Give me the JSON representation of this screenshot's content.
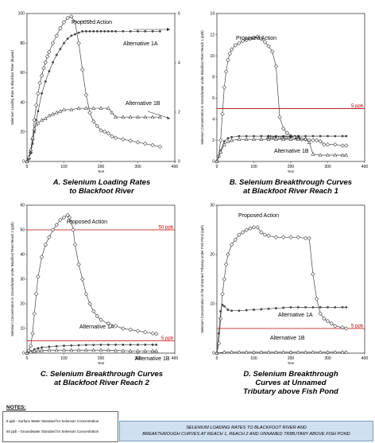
{
  "chart_data": [
    {
      "type": "line",
      "panel": "A",
      "caption_lines": [
        "A. Selenium Loading Rates",
        "to Blackfoot River"
      ],
      "xlabel": "Year",
      "ylabel": "Selenium Loading Rate to Blackfoot River (lb/year)",
      "xlim": [
        0,
        400
      ],
      "ylim": [
        0,
        100
      ],
      "y2lim": [
        0,
        6
      ],
      "xticks": [
        0,
        100,
        200,
        300,
        400
      ],
      "yticks": [
        0,
        20,
        40,
        60,
        80,
        100
      ],
      "y2ticks": [
        0,
        2,
        4,
        6
      ],
      "series": [
        {
          "name": "Proposed Action",
          "marker": "diamond",
          "axis": "left",
          "x": [
            0,
            5,
            10,
            15,
            20,
            25,
            30,
            35,
            40,
            45,
            50,
            55,
            60,
            70,
            80,
            90,
            100,
            110,
            120,
            130,
            140,
            150,
            160,
            170,
            180,
            190,
            200,
            210,
            220,
            230,
            240,
            260,
            280,
            300,
            320,
            340,
            360
          ],
          "y": [
            0,
            2,
            6,
            15,
            28,
            38,
            46,
            53,
            58,
            63,
            67,
            71,
            74,
            80,
            85,
            90,
            94,
            97,
            98,
            94,
            80,
            62,
            45,
            33,
            27,
            24,
            21,
            20,
            19,
            17,
            16,
            15,
            14,
            13,
            12,
            11,
            10
          ]
        },
        {
          "name": "Alternative 1A",
          "marker": "circle",
          "axis": "left",
          "x": [
            0,
            5,
            10,
            15,
            20,
            25,
            30,
            40,
            50,
            60,
            70,
            80,
            90,
            100,
            110,
            120,
            130,
            140,
            150,
            160,
            170,
            180,
            190,
            200,
            210,
            220,
            230,
            240,
            260,
            280,
            300,
            320,
            340,
            360
          ],
          "y": [
            0,
            2,
            6,
            12,
            20,
            28,
            34,
            46,
            54,
            61,
            67,
            72,
            76,
            80,
            83,
            85,
            86,
            87,
            88,
            88,
            88,
            88,
            88,
            88,
            88,
            88,
            88,
            88,
            88,
            88,
            88,
            88,
            88,
            88
          ]
        },
        {
          "name": "Alternative 1B",
          "marker": "triangle",
          "axis": "left",
          "x": [
            0,
            5,
            10,
            15,
            20,
            25,
            30,
            40,
            50,
            60,
            70,
            80,
            90,
            100,
            120,
            140,
            160,
            180,
            200,
            220,
            230,
            240,
            260,
            280,
            300,
            320,
            340,
            360
          ],
          "y": [
            0,
            3,
            8,
            16,
            22,
            25,
            26,
            28,
            29,
            31,
            32,
            33,
            34,
            35,
            35,
            36,
            36,
            36,
            36,
            36,
            33,
            30,
            30,
            30,
            30,
            30,
            30,
            30
          ]
        }
      ]
    },
    {
      "type": "line",
      "panel": "B",
      "caption_lines": [
        "B. Selenium Breakthrough Curves",
        "at Blackfoot River Reach 1"
      ],
      "xlabel": "Year",
      "ylabel": "Selenium Concentration in Groundwater under Blackfoot River Reach 1 (ppb)",
      "xlim": [
        0,
        400
      ],
      "ylim": [
        0,
        14
      ],
      "xticks": [
        0,
        100,
        200,
        300,
        400
      ],
      "yticks": [
        0,
        2,
        4,
        6,
        8,
        10,
        12,
        14
      ],
      "standard_line": {
        "value": 5,
        "label": "5 ppb"
      },
      "series": [
        {
          "name": "Proposed Action",
          "marker": "diamond",
          "x": [
            0,
            5,
            10,
            15,
            20,
            25,
            30,
            35,
            40,
            50,
            60,
            70,
            80,
            90,
            100,
            110,
            120,
            130,
            140,
            150,
            160,
            170,
            180,
            190,
            200,
            210,
            220,
            230,
            240,
            250,
            260,
            270,
            280,
            290,
            300,
            320,
            340,
            350
          ],
          "y": [
            0,
            0.5,
            2,
            4.5,
            7,
            8.5,
            9.6,
            10.2,
            10.6,
            11.0,
            11.2,
            11.4,
            11.5,
            11.6,
            11.7,
            11.8,
            11.6,
            11.3,
            10.9,
            10.4,
            9.0,
            4.2,
            3.1,
            2.7,
            2.4,
            2.3,
            2.2,
            2.1,
            2.1,
            2.0,
            2.0,
            2.0,
            1.9,
            1.6,
            1.6,
            1.6,
            1.5,
            1.5
          ]
        },
        {
          "name": "Alternative 1A",
          "marker": "circle",
          "x": [
            0,
            10,
            20,
            30,
            40,
            60,
            80,
            100,
            120,
            140,
            160,
            180,
            200,
            220,
            240,
            260,
            280,
            300,
            320,
            340,
            350
          ],
          "y": [
            0,
            1.0,
            1.9,
            2.2,
            2.3,
            2.4,
            2.4,
            2.4,
            2.4,
            2.4,
            2.4,
            2.4,
            2.4,
            2.4,
            2.4,
            2.4,
            2.4,
            2.4,
            2.4,
            2.4,
            2.4
          ]
        },
        {
          "name": "Alternative 1B",
          "marker": "triangle",
          "x": [
            0,
            10,
            20,
            30,
            40,
            60,
            80,
            100,
            120,
            140,
            160,
            180,
            200,
            220,
            240,
            250,
            260,
            280,
            300,
            320,
            340,
            350
          ],
          "y": [
            0,
            0.9,
            1.6,
            1.9,
            2.0,
            2.1,
            2.1,
            2.1,
            2.1,
            2.1,
            2.1,
            2.1,
            2.1,
            2.1,
            2.1,
            1.8,
            0.7,
            0.6,
            0.6,
            0.6,
            0.6,
            0.6
          ]
        }
      ]
    },
    {
      "type": "line",
      "panel": "C",
      "caption_lines": [
        "C. Selenium Breakthrough Curves",
        "at Blackfoot River Reach 2"
      ],
      "xlabel": "Year",
      "ylabel": "Selenium Concentration in Groundwater under Blackfoot River Reach 2 (ppb)",
      "xlim": [
        0,
        400
      ],
      "ylim": [
        0,
        60
      ],
      "xticks": [
        0,
        100,
        200,
        300,
        400
      ],
      "yticks": [
        0,
        10,
        20,
        30,
        40,
        50,
        60
      ],
      "standard_lines": [
        {
          "value": 50,
          "label": "50 ppb"
        },
        {
          "value": 5,
          "label": "5 ppb"
        }
      ],
      "series": [
        {
          "name": "Proposed Action",
          "marker": "diamond",
          "x": [
            0,
            5,
            10,
            15,
            20,
            25,
            30,
            40,
            50,
            60,
            70,
            80,
            90,
            100,
            110,
            115,
            120,
            125,
            130,
            140,
            150,
            160,
            170,
            180,
            190,
            200,
            220,
            240,
            260,
            280,
            300,
            320,
            340,
            350
          ],
          "y": [
            0,
            1,
            3,
            8,
            16,
            24,
            31,
            39,
            44,
            47,
            50,
            52,
            54,
            55,
            56,
            55,
            53,
            50,
            44,
            36,
            30,
            24,
            20,
            17,
            15,
            13.5,
            12,
            11,
            10,
            9.5,
            9,
            8.5,
            8,
            7.8
          ]
        },
        {
          "name": "Alternative 1A",
          "marker": "circle",
          "x": [
            0,
            10,
            20,
            30,
            40,
            60,
            80,
            100,
            120,
            140,
            160,
            180,
            200,
            220,
            240,
            260,
            280,
            300,
            320,
            340,
            350
          ],
          "y": [
            0,
            0.8,
            1.5,
            2.0,
            2.3,
            2.6,
            2.8,
            3.0,
            3.1,
            3.2,
            3.3,
            3.3,
            3.4,
            3.4,
            3.4,
            3.4,
            3.4,
            3.4,
            3.4,
            3.4,
            3.4
          ]
        },
        {
          "name": "Alternative 1B",
          "marker": "triangle",
          "x": [
            0,
            10,
            20,
            30,
            40,
            60,
            80,
            100,
            120,
            140,
            160,
            180,
            200,
            220,
            240,
            260,
            280,
            300,
            320,
            340,
            350
          ],
          "y": [
            0,
            0.5,
            0.8,
            1.0,
            1.1,
            1.2,
            1.2,
            1.2,
            1.2,
            1.2,
            1.2,
            1.2,
            1.2,
            1.2,
            1.1,
            1.0,
            0.9,
            0.9,
            0.9,
            0.9,
            0.9
          ]
        }
      ]
    },
    {
      "type": "line",
      "panel": "D",
      "caption_lines": [
        "D. Selenium Breakthrough",
        "Curves at Unnamed",
        "Tributary above Fish Pond"
      ],
      "xlabel": "Year",
      "ylabel": "Selenium Concentration in the Unnamed Tributary under Fish Pond (ppb)",
      "xlim": [
        0,
        400
      ],
      "ylim": [
        0,
        30
      ],
      "xticks": [
        0,
        100,
        200,
        300,
        400
      ],
      "yticks": [
        0,
        10,
        20,
        30
      ],
      "standard_line": {
        "value": 5,
        "label": "5 ppb"
      },
      "series": [
        {
          "name": "Proposed Action",
          "marker": "diamond",
          "x": [
            0,
            5,
            10,
            15,
            20,
            25,
            30,
            40,
            50,
            60,
            70,
            80,
            90,
            100,
            110,
            120,
            130,
            140,
            160,
            180,
            200,
            220,
            240,
            250,
            260,
            270,
            280,
            290,
            300,
            310,
            320,
            340,
            350
          ],
          "y": [
            0,
            2,
            7,
            12,
            15,
            18,
            20,
            22,
            23,
            24,
            24.5,
            25,
            25.3,
            25.5,
            25.5,
            24.5,
            24,
            23.8,
            23.5,
            23.5,
            23.5,
            23.5,
            23.3,
            23.3,
            16,
            11,
            8,
            7,
            6.5,
            6,
            5.5,
            5.2,
            5.0
          ]
        },
        {
          "name": "Alternative 1A",
          "marker": "circle",
          "x": [
            0,
            5,
            10,
            15,
            20,
            30,
            40,
            60,
            80,
            100,
            120,
            140,
            160,
            180,
            200,
            220,
            240,
            260,
            280,
            300,
            320,
            340,
            350
          ],
          "y": [
            0,
            4,
            8.5,
            9.8,
            9.5,
            8.8,
            8.6,
            8.6,
            8.7,
            8.8,
            8.9,
            9.0,
            9.1,
            9.2,
            9.3,
            9.3,
            9.3,
            9.3,
            9.3,
            9.3,
            9.3,
            9.3,
            9.3
          ]
        },
        {
          "name": "Alternative 1B",
          "marker": "triangle",
          "x": [
            0,
            20,
            40,
            60,
            80,
            100,
            120,
            140,
            160,
            180,
            200,
            220,
            240,
            260,
            280,
            300,
            320,
            340,
            350
          ],
          "y": [
            0,
            0.2,
            0.2,
            0.2,
            0.2,
            0.2,
            0.2,
            0.2,
            0.2,
            0.2,
            0.2,
            0.2,
            0.2,
            0.2,
            0.2,
            0.2,
            0.2,
            0.2,
            0.2
          ]
        }
      ]
    }
  ],
  "notes": {
    "title": "NOTES:",
    "items": [
      "5 ppb - Surface Water Standard for Selenium Concentration",
      "50 ppb - Groundwater Standard for Selenium Concentration"
    ]
  },
  "banner": {
    "line1": "SELENIUM LOADING RATES TO BLACKFOOT RIVER AND",
    "line2": "BREAKTHROUGH CURVES AT REACH 1, REACH 2 AND UNNAMED TRIBUTARY ABOVE FISH POND"
  },
  "colors": {
    "standard_line": "#c00000",
    "series": "#444444"
  }
}
